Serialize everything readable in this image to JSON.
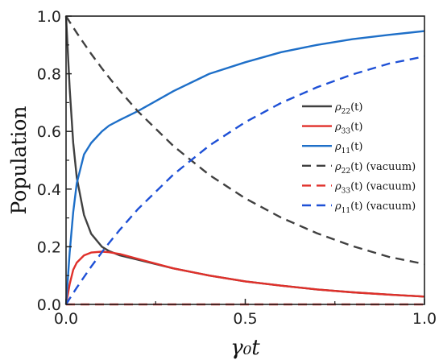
{
  "chart_data": {
    "type": "line",
    "title": "",
    "xlabel": "γ₀t",
    "ylabel": "Population",
    "xlim": [
      0,
      1
    ],
    "ylim": [
      0,
      1
    ],
    "xticks": [
      "0.0",
      "0.5",
      "1.0"
    ],
    "yticks": [
      "0.0",
      "0.2",
      "0.4",
      "0.6",
      "0.8",
      "1.0"
    ],
    "grid": false,
    "legend_position": "right",
    "x": [
      0,
      0.01,
      0.02,
      0.03,
      0.05,
      0.07,
      0.1,
      0.12,
      0.15,
      0.2,
      0.3,
      0.4,
      0.5,
      0.6,
      0.7,
      0.8,
      0.9,
      1.0
    ],
    "series": [
      {
        "name": "ρ22(t)",
        "legend_main": "ρ",
        "legend_sub": "22",
        "legend_suffix": "(t)",
        "color": "#404040",
        "dash": false,
        "values": [
          1.0,
          0.75,
          0.56,
          0.44,
          0.31,
          0.245,
          0.2,
          0.185,
          0.17,
          0.155,
          0.125,
          0.1,
          0.08,
          0.065,
          0.052,
          0.042,
          0.034,
          0.027
        ]
      },
      {
        "name": "ρ33(t)",
        "legend_main": "ρ",
        "legend_sub": "33",
        "legend_suffix": "(t)",
        "color": "#e0302a",
        "dash": false,
        "values": [
          0.0,
          0.07,
          0.12,
          0.145,
          0.17,
          0.18,
          0.183,
          0.181,
          0.175,
          0.158,
          0.125,
          0.1,
          0.08,
          0.065,
          0.052,
          0.042,
          0.034,
          0.027
        ]
      },
      {
        "name": "ρ11(t)",
        "legend_main": "ρ",
        "legend_sub": "11",
        "legend_suffix": "(t)",
        "color": "#1e6fc8",
        "dash": false,
        "values": [
          0.0,
          0.18,
          0.32,
          0.42,
          0.52,
          0.56,
          0.6,
          0.62,
          0.64,
          0.67,
          0.74,
          0.8,
          0.84,
          0.875,
          0.9,
          0.92,
          0.935,
          0.948
        ]
      },
      {
        "name": "ρ22(t) (vacuum)",
        "legend_main": "ρ",
        "legend_sub": "22",
        "legend_suffix": "(t) (vacuum)",
        "color": "#404040",
        "dash": true,
        "values": [
          1.0,
          0.98,
          0.961,
          0.942,
          0.905,
          0.869,
          0.819,
          0.787,
          0.741,
          0.67,
          0.549,
          0.449,
          0.368,
          0.301,
          0.247,
          0.202,
          0.165,
          0.14
        ]
      },
      {
        "name": "ρ33(t) (vacuum)",
        "legend_main": "ρ",
        "legend_sub": "33",
        "legend_suffix": "(t) (vacuum)",
        "color": "#e0302a",
        "dash": true,
        "values": [
          0,
          0,
          0,
          0,
          0,
          0,
          0,
          0,
          0,
          0,
          0,
          0,
          0,
          0,
          0,
          0,
          0,
          0
        ]
      },
      {
        "name": "ρ11(t) (vacuum)",
        "legend_main": "ρ",
        "legend_sub": "11",
        "legend_suffix": "(t) (vacuum)",
        "color": "#1e50d6",
        "dash": true,
        "values": [
          0.0,
          0.02,
          0.039,
          0.058,
          0.095,
          0.131,
          0.181,
          0.213,
          0.259,
          0.33,
          0.451,
          0.551,
          0.632,
          0.699,
          0.753,
          0.798,
          0.835,
          0.86
        ]
      }
    ]
  }
}
